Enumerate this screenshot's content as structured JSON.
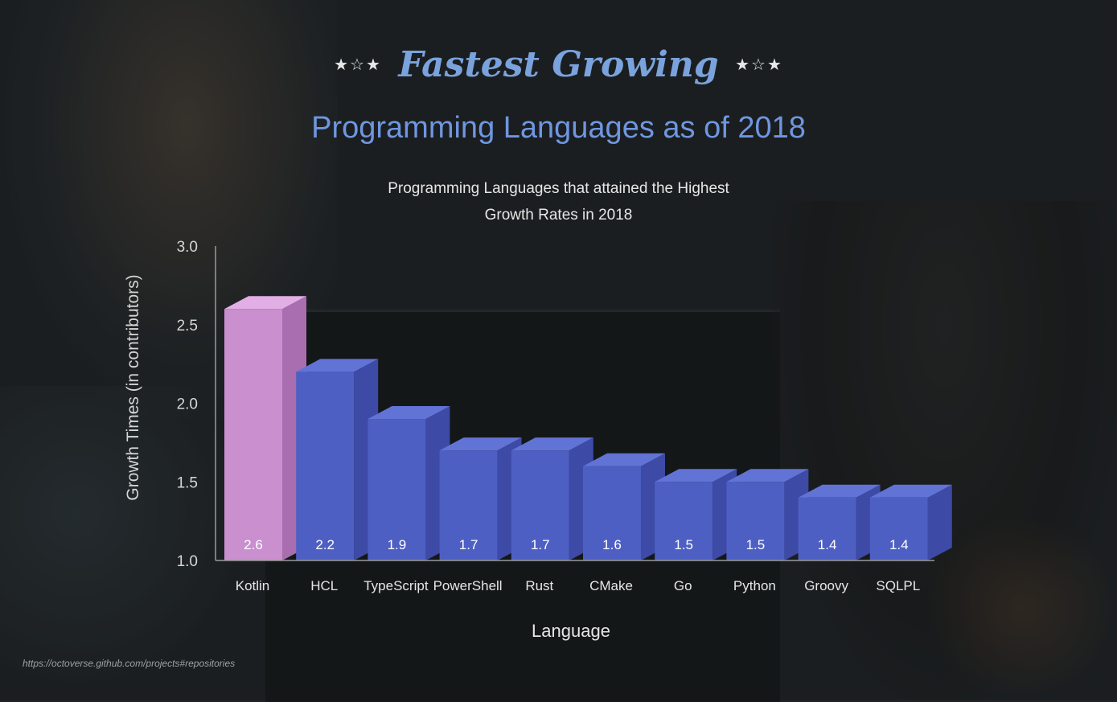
{
  "header": {
    "stars_left": "★☆★",
    "stars_right": "★☆★",
    "script_title": "Fastest Growing",
    "main_title": "Programming Languages as of 2018",
    "subtitle_line1": "Programming Languages that attained the Highest",
    "subtitle_line2": "Growth Rates in 2018"
  },
  "source": "https://octoverse.github.com/projects#repositories",
  "colors": {
    "highlight_front": "#c98fce",
    "highlight_side": "#a86eb0",
    "highlight_top": "#e2aee6",
    "bar_front": "#4e5fc4",
    "bar_side": "#3d4aa6",
    "bar_top": "#6273d6",
    "axis_text": "#d6d6d6",
    "label_text": "#e6e6e6"
  },
  "chart_data": {
    "type": "bar",
    "title": "Programming Languages that attained the Highest Growth Rates in 2018",
    "xlabel": "Language",
    "ylabel": "Growth Times (in contributors)",
    "ylim": [
      1.0,
      3.0
    ],
    "yticks": [
      "1.0",
      "1.5",
      "2.0",
      "2.5",
      "3.0"
    ],
    "categories": [
      "Kotlin",
      "HCL",
      "TypeScript",
      "PowerShell",
      "Rust",
      "CMake",
      "Go",
      "Python",
      "Groovy",
      "SQLPL"
    ],
    "values": [
      2.6,
      2.2,
      1.9,
      1.7,
      1.7,
      1.6,
      1.5,
      1.5,
      1.4,
      1.4
    ],
    "value_labels": [
      "2.6",
      "2.2",
      "1.9",
      "1.7",
      "1.7",
      "1.6",
      "1.5",
      "1.5",
      "1.4",
      "1.4"
    ],
    "highlight_index": 0,
    "grid": false,
    "legend": "none"
  }
}
